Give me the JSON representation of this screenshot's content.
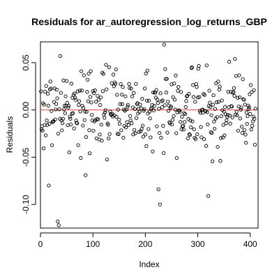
{
  "chart_data": {
    "type": "scatter",
    "title": "Residuals for ar_autoregression_log_returns_GBP",
    "xlabel": "Index",
    "ylabel": "Residuals",
    "xlim": [
      0,
      415
    ],
    "ylim": [
      -0.125,
      0.072
    ],
    "x_ticks": [
      0,
      100,
      200,
      300,
      400
    ],
    "x_tick_labels": [
      "0",
      "100",
      "200",
      "300",
      "400"
    ],
    "y_ticks": [
      -0.1,
      -0.05,
      0.0,
      0.05
    ],
    "y_tick_labels": [
      "-0.10",
      "-0.05",
      "0.00",
      "0.05"
    ],
    "hline": {
      "y": 0.0,
      "color": "#e04040"
    },
    "grid": false,
    "point_style": "open-circle",
    "point_color": "#000000",
    "n_points": 410,
    "seed": 20240611,
    "highlighted_points": [
      {
        "x": 16,
        "y": -0.08
      },
      {
        "x": 33,
        "y": -0.118
      },
      {
        "x": 35,
        "y": -0.122
      },
      {
        "x": 38,
        "y": 0.057
      },
      {
        "x": 86,
        "y": -0.069
      },
      {
        "x": 225,
        "y": -0.084
      },
      {
        "x": 228,
        "y": -0.1
      },
      {
        "x": 236,
        "y": 0.069
      },
      {
        "x": 320,
        "y": -0.091
      },
      {
        "x": 360,
        "y": 0.051
      },
      {
        "x": 371,
        "y": 0.054
      }
    ]
  }
}
